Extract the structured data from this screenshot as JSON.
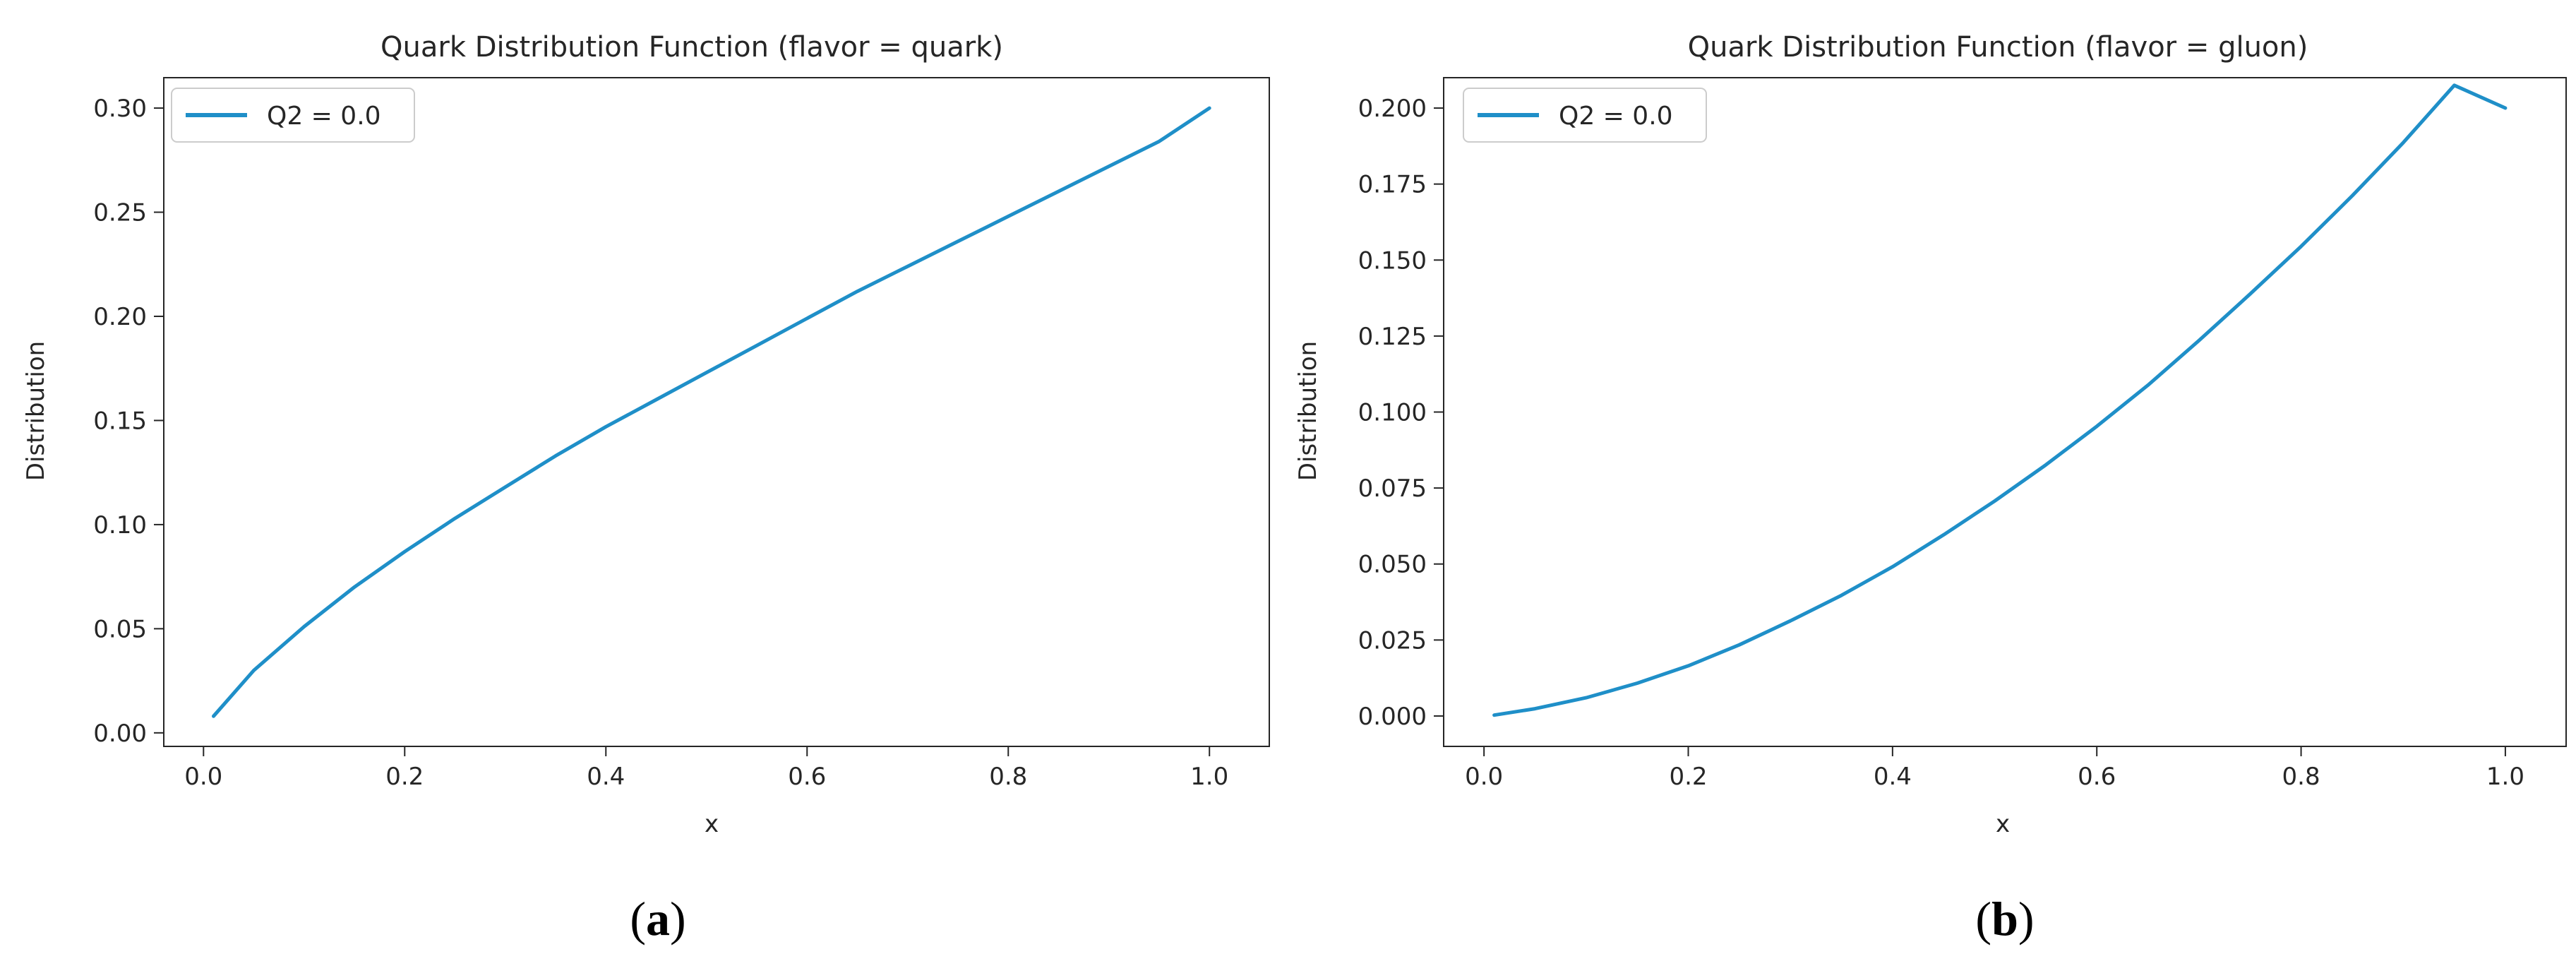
{
  "figure": {
    "panel_labels": [
      "(a)",
      "(b)"
    ],
    "panel_label_parts": [
      {
        "open": "(",
        "letter": "a",
        "close": ")"
      },
      {
        "open": "(",
        "letter": "b",
        "close": ")"
      }
    ]
  },
  "colors": {
    "line": "#1f8fc8",
    "axes": "#262626",
    "legend_border": "#cccccc"
  },
  "chart_data": [
    {
      "type": "line",
      "title": "Quark Distribution Function (flavor = quark)",
      "xlabel": "x",
      "ylabel": "Distribution",
      "xlim": [
        -0.0395,
        1.0595
      ],
      "ylim": [
        -0.0065,
        0.3146
      ],
      "xticks": [
        0.0,
        0.2,
        0.4,
        0.6,
        0.8,
        1.0
      ],
      "xtick_labels": [
        "0.0",
        "0.2",
        "0.4",
        "0.6",
        "0.8",
        "1.0"
      ],
      "yticks": [
        0.0,
        0.05,
        0.1,
        0.15,
        0.2,
        0.25,
        0.3
      ],
      "ytick_labels": [
        "0.00",
        "0.05",
        "0.10",
        "0.15",
        "0.20",
        "0.25",
        "0.30"
      ],
      "grid": false,
      "legend_position": "upper left",
      "series": [
        {
          "name": "Q2 = 0.0",
          "x": [
            0.01,
            0.05,
            0.1,
            0.15,
            0.2,
            0.25,
            0.3,
            0.35,
            0.4,
            0.45,
            0.5,
            0.55,
            0.6,
            0.65,
            0.7,
            0.75,
            0.8,
            0.85,
            0.9,
            0.95,
            1.0
          ],
          "y": [
            0.008,
            0.03,
            0.051,
            0.07,
            0.087,
            0.103,
            0.118,
            0.133,
            0.147,
            0.16,
            0.173,
            0.186,
            0.199,
            0.212,
            0.224,
            0.236,
            0.248,
            0.26,
            0.272,
            0.284,
            0.3
          ]
        }
      ]
    },
    {
      "type": "line",
      "title": "Quark Distribution Function (flavor = gluon)",
      "xlabel": "x",
      "ylabel": "Distribution",
      "xlim": [
        -0.0395,
        1.0595
      ],
      "ylim": [
        -0.01,
        0.21
      ],
      "xticks": [
        0.0,
        0.2,
        0.4,
        0.6,
        0.8,
        1.0
      ],
      "xtick_labels": [
        "0.0",
        "0.2",
        "0.4",
        "0.6",
        "0.8",
        "1.0"
      ],
      "yticks": [
        0.0,
        0.025,
        0.05,
        0.075,
        0.1,
        0.125,
        0.15,
        0.175,
        0.2
      ],
      "ytick_labels": [
        "0.000",
        "0.025",
        "0.050",
        "0.075",
        "0.100",
        "0.125",
        "0.150",
        "0.175",
        "0.200"
      ],
      "grid": false,
      "legend_position": "upper left",
      "series": [
        {
          "name": "Q2 = 0.0",
          "x": [
            0.01,
            0.05,
            0.1,
            0.15,
            0.2,
            0.25,
            0.3,
            0.35,
            0.4,
            0.45,
            0.5,
            0.55,
            0.6,
            0.65,
            0.7,
            0.75,
            0.8,
            0.85,
            0.9,
            0.95,
            1.0
          ],
          "y": [
            0.0003,
            0.0024,
            0.006,
            0.0108,
            0.0165,
            0.0234,
            0.0313,
            0.0397,
            0.0491,
            0.0596,
            0.0707,
            0.0826,
            0.0953,
            0.1088,
            0.1235,
            0.1388,
            0.1545,
            0.1711,
            0.1886,
            0.2075,
            0.2
          ]
        }
      ]
    }
  ]
}
